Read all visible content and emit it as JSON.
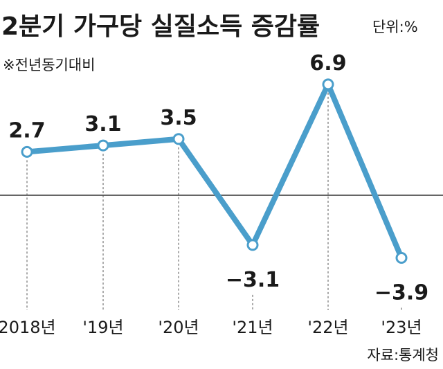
{
  "chart_data": {
    "type": "line",
    "title": "2분기 가구당 실질소득 증감률",
    "unit": "단위:%",
    "subtitle": "※전년동기대비",
    "categories": [
      "2018년",
      "'19년",
      "'20년",
      "'21년",
      "'22년",
      "'23년"
    ],
    "values": [
      2.7,
      3.1,
      3.5,
      -3.1,
      6.9,
      -3.9
    ],
    "value_labels": [
      "2.7",
      "3.1",
      "3.5",
      "−3.1",
      "6.9",
      "−3.9"
    ],
    "source": "자료:통계청",
    "colors": {
      "line": "#4a9ecb",
      "marker_fill": "#ffffff",
      "zero_line": "#333333",
      "text": "#1a1a1a"
    },
    "zero_line": true,
    "grid": false
  }
}
